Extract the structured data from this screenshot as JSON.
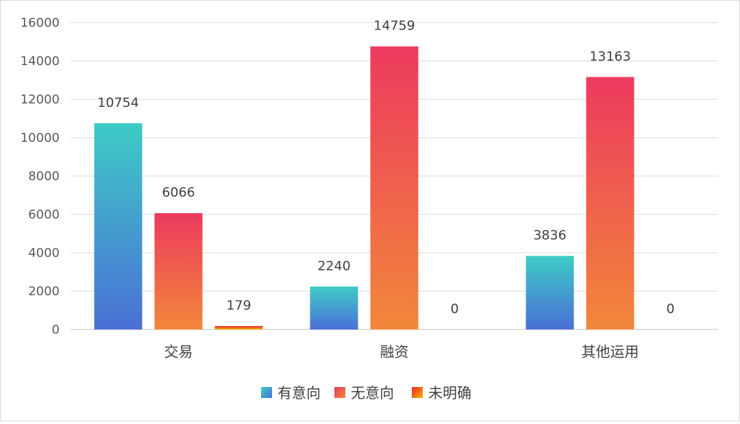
{
  "chart_data": {
    "type": "bar",
    "categories": [
      "交易",
      "融资",
      "其他运用"
    ],
    "series": [
      {
        "name": "有意向",
        "values": [
          10754,
          2240,
          3836
        ],
        "color_top": "#3ecbc6",
        "color_bottom": "#4a6fd6"
      },
      {
        "name": "无意向",
        "values": [
          6066,
          14759,
          13163
        ],
        "color_top": "#ec3a5e",
        "color_bottom": "#f2873a"
      },
      {
        "name": "未明确",
        "values": [
          179,
          0,
          0
        ],
        "color_top": "#e8242a",
        "color_bottom": "#f8b400"
      }
    ],
    "y_ticks": [
      "0",
      "2000",
      "4000",
      "6000",
      "8000",
      "10000",
      "12000",
      "14000",
      "16000"
    ],
    "ylim": [
      0,
      16000
    ],
    "grid": true,
    "legend_position": "bottom",
    "title": "",
    "xlabel": "",
    "ylabel": ""
  }
}
